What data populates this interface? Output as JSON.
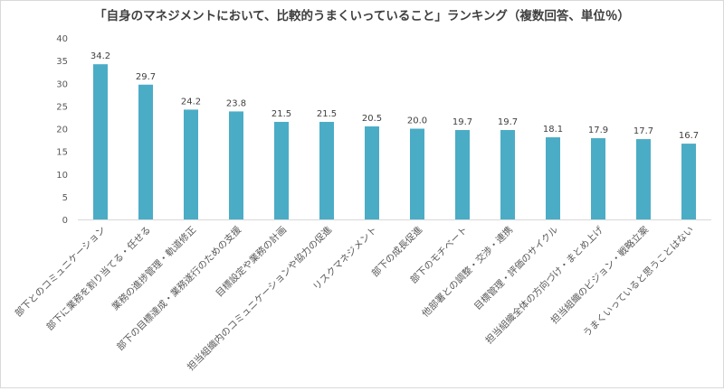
{
  "chart_data": {
    "type": "bar",
    "title": "「自身のマネジメントにおいて、比較的うまくいっていること」ランキング（複数回答、単位％）",
    "categories": [
      "部下とのコミュニケーション",
      "部下に業務を割り当てる・任せる",
      "業務の進捗管理・軌道修正",
      "部下の目標達成・業務遂行のための支援",
      "目標設定や業務の計画",
      "担当組織内のコミュニケーションや協力の促進",
      "リスクマネジメント",
      "部下の成長促進",
      "部下のモチベート",
      "他部署との調整・交渉・連携",
      "目標管理・評価のサイクル",
      "担当組織全体の方向づけ・まとめ上げ",
      "担当組織のビジョン・戦略立案",
      "うまくいっていると思うことはない"
    ],
    "values": [
      34.2,
      29.7,
      24.2,
      23.8,
      21.5,
      21.5,
      20.5,
      20.0,
      19.7,
      19.7,
      18.1,
      17.9,
      17.7,
      16.7
    ],
    "value_labels": [
      "34.2",
      "29.7",
      "24.2",
      "23.8",
      "21.5",
      "21.5",
      "20.5",
      "20.0",
      "19.7",
      "19.7",
      "18.1",
      "17.9",
      "17.7",
      "16.7"
    ],
    "ylim": [
      0,
      40
    ],
    "yticks": [
      "0",
      "5",
      "10",
      "15",
      "20",
      "25",
      "30",
      "35",
      "40"
    ],
    "grid": false,
    "bar_color": "#4BACC6"
  }
}
